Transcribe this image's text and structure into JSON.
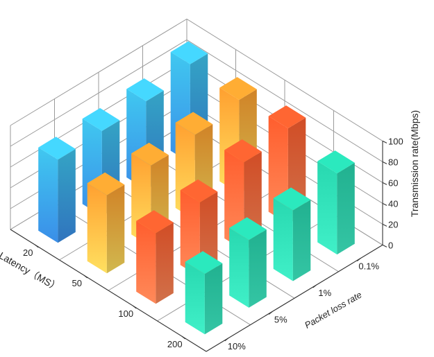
{
  "chart_data": {
    "type": "bar3d",
    "title": "",
    "xlabel": "Latency（MS）",
    "ylabel": "Packet loss rate",
    "zlabel": "Transmission rate(Mbps)",
    "latency_categories": [
      "20",
      "50",
      "100",
      "200"
    ],
    "packet_loss_categories": [
      "0.1%",
      "1%",
      "5%",
      "10%"
    ],
    "z_ticks": [
      "0",
      "20",
      "40",
      "60",
      "80",
      "100"
    ],
    "zlim": [
      0,
      100
    ],
    "grid": true,
    "series": [
      {
        "name": "",
        "latency": "20",
        "color_top": "#40c8f0",
        "color_bottom": "#3a8ee8",
        "values": [
          95,
          85,
          82,
          80
        ]
      },
      {
        "name": "",
        "latency": "50",
        "color_top": "#ffa030",
        "color_bottom": "#ffe060",
        "values": [
          90,
          82,
          78,
          75
        ]
      },
      {
        "name": "",
        "latency": "100",
        "color_top": "#ff5e2e",
        "color_bottom": "#ff8a5a",
        "values": [
          92,
          85,
          72,
          68
        ]
      },
      {
        "name": "",
        "latency": "200",
        "color_top": "#28d8b0",
        "color_bottom": "#40f0c8",
        "values": [
          78,
          68,
          65,
          58
        ]
      }
    ]
  }
}
